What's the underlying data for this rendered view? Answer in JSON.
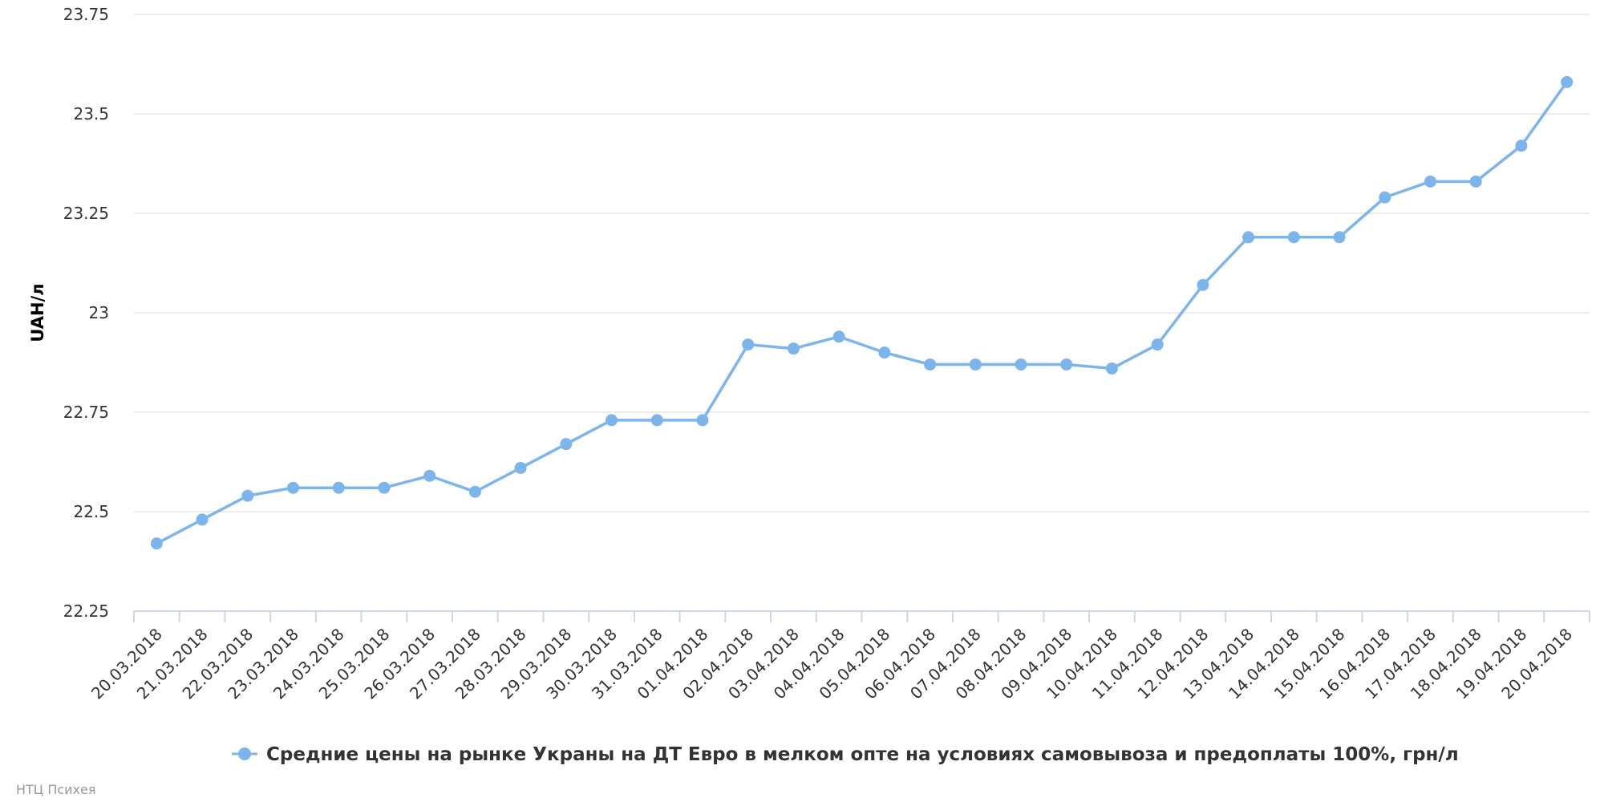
{
  "chart_data": {
    "type": "line",
    "xlabel": "",
    "ylabel": "UAH/л",
    "ylim": [
      22.25,
      23.75
    ],
    "yticks": [
      "22.25",
      "22.5",
      "22.75",
      "23",
      "23.25",
      "23.5",
      "23.75"
    ],
    "grid": true,
    "legend_position": "bottom-center",
    "categories": [
      "20.03.2018",
      "21.03.2018",
      "22.03.2018",
      "23.03.2018",
      "24.03.2018",
      "25.03.2018",
      "26.03.2018",
      "27.03.2018",
      "28.03.2018",
      "29.03.2018",
      "30.03.2018",
      "31.03.2018",
      "01.04.2018",
      "02.04.2018",
      "03.04.2018",
      "04.04.2018",
      "05.04.2018",
      "06.04.2018",
      "07.04.2018",
      "08.04.2018",
      "09.04.2018",
      "10.04.2018",
      "11.04.2018",
      "12.04.2018",
      "13.04.2018",
      "14.04.2018",
      "15.04.2018",
      "16.04.2018",
      "17.04.2018",
      "18.04.2018",
      "19.04.2018",
      "20.04.2018"
    ],
    "series": [
      {
        "name": "Средние цены на рынке Украны на ДТ Евро в мелком опте на условиях самовывоза и предоплаты 100%, грн/л",
        "color": "#7cb5ec",
        "values": [
          22.42,
          22.48,
          22.54,
          22.56,
          22.56,
          22.56,
          22.59,
          22.55,
          22.61,
          22.67,
          22.73,
          22.73,
          22.73,
          22.92,
          22.91,
          22.94,
          22.9,
          22.87,
          22.87,
          22.87,
          22.87,
          22.86,
          22.92,
          23.07,
          23.19,
          23.19,
          23.19,
          23.29,
          23.33,
          23.33,
          23.42,
          23.58
        ]
      }
    ]
  },
  "credit": "НТЦ Психея"
}
